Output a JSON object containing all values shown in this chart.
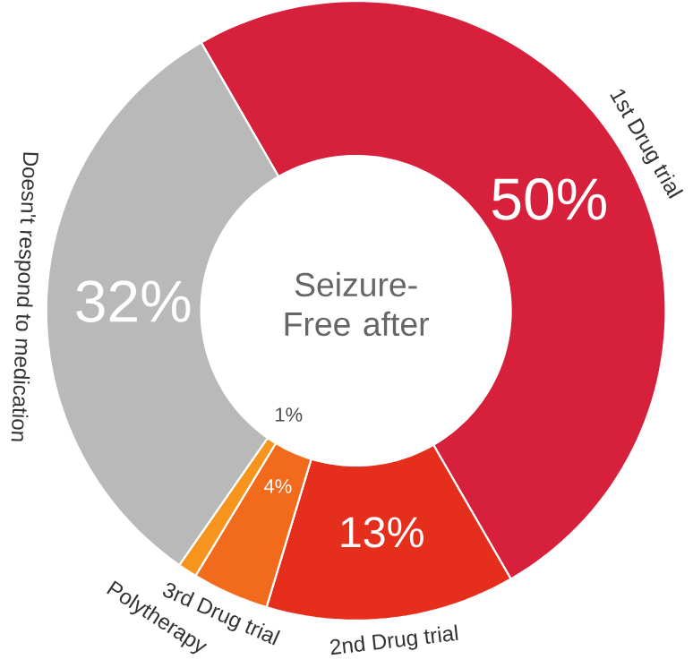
{
  "chart_data": {
    "type": "donut",
    "title": "Seizure-Free after",
    "categories": [
      "1st Drug trial",
      "2nd Drug trial",
      "3rd Drug trial",
      "Polytherapy",
      "Doesn't respond to medication"
    ],
    "values": [
      50,
      13,
      4,
      1,
      32
    ],
    "value_labels": [
      "50%",
      "13%",
      "4%",
      "1%",
      "32%"
    ],
    "colors": [
      "#d7203b",
      "#e52f1c",
      "#f26b1d",
      "#f7941d",
      "#b9b9b9"
    ]
  }
}
